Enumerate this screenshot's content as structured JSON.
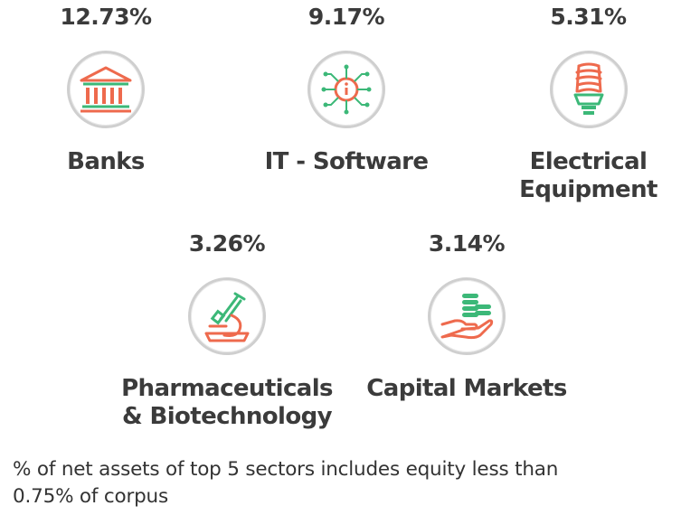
{
  "chart_data": {
    "type": "table",
    "categories": [
      "Banks",
      "IT - Software",
      "Electrical Equipment",
      "Pharmaceuticals & Biotechnology",
      "Capital Markets"
    ],
    "values": [
      12.73,
      9.17,
      5.31,
      3.26,
      3.14
    ],
    "unit": "%"
  },
  "sectors": [
    {
      "pct": "12.73%",
      "label_lines": [
        "Banks"
      ],
      "icon": "bank-building-icon"
    },
    {
      "pct": "9.17%",
      "label_lines": [
        "IT - Software"
      ],
      "icon": "circuit-info-icon"
    },
    {
      "pct": "5.31%",
      "label_lines": [
        "Electrical",
        "Equipment"
      ],
      "icon": "cfl-bulb-icon"
    },
    {
      "pct": "3.26%",
      "label_lines": [
        "Pharmaceuticals",
        "& Biotechnology"
      ],
      "icon": "microscope-icon"
    },
    {
      "pct": "3.14%",
      "label_lines": [
        "Capital Markets"
      ],
      "icon": "hand-coins-icon"
    }
  ],
  "footnote": {
    "line1": "% of net assets of top 5 sectors includes equity less than",
    "line2": "0.75% of corpus"
  },
  "colors": {
    "orange": "#ee6a4d",
    "green": "#3cb878",
    "ring": "#cfcfcf",
    "text": "#3b3b3b"
  }
}
